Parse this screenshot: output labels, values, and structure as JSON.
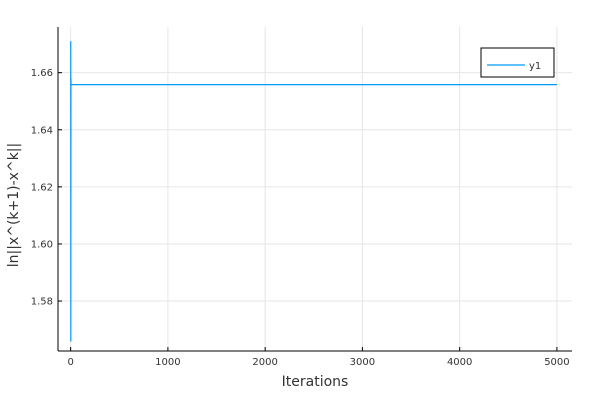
{
  "chart_data": {
    "type": "line",
    "title": "",
    "xlabel": "Iterations",
    "ylabel": "ln||x^(k+1)-x^k||",
    "xlim": [
      -130,
      5155
    ],
    "ylim": [
      1.5625,
      1.676
    ],
    "xticks": [
      0,
      1000,
      2000,
      3000,
      4000,
      5000
    ],
    "yticks": [
      1.58,
      1.6,
      1.62,
      1.64,
      1.66
    ],
    "ytick_labels": [
      "1.58",
      "1.60",
      "1.62",
      "1.64",
      "1.66"
    ],
    "grid": true,
    "legend_position": "top-right",
    "series": [
      {
        "name": "y1",
        "color": "#009af9",
        "x": [
          1,
          2,
          3,
          4,
          5,
          6,
          7,
          8,
          10,
          20,
          50,
          100,
          500,
          1000,
          2000,
          3000,
          4000,
          5000
        ],
        "y": [
          1.671,
          1.566,
          1.658,
          1.6555,
          1.6559,
          1.6557,
          1.6558,
          1.6558,
          1.6558,
          1.6558,
          1.6558,
          1.6558,
          1.6558,
          1.6558,
          1.6558,
          1.6558,
          1.6558,
          1.6558
        ]
      }
    ]
  }
}
